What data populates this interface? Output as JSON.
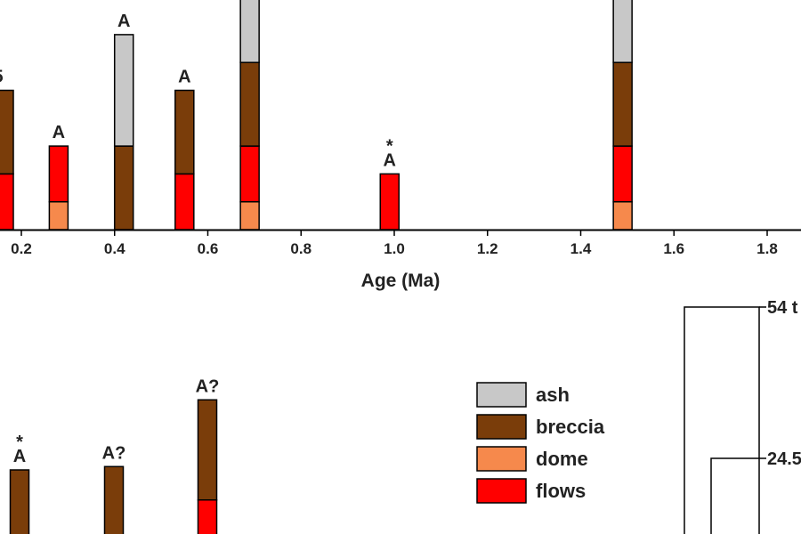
{
  "chart_data": [
    {
      "type": "bar",
      "stacked": true,
      "xlabel": "Age (Ma)",
      "x_ticks": [
        "0.2",
        "0.4",
        "0.6",
        "0.8",
        "1.0",
        "1.2",
        "1.4",
        "1.6",
        "1.8"
      ],
      "xlim": [
        0.15,
        1.85
      ],
      "series_order": [
        "dome",
        "flows",
        "breccia",
        "ash"
      ],
      "bars": [
        {
          "x": 0.14,
          "dome": 0,
          "flows": 2,
          "breccia": 3,
          "ash": 0,
          "label": "5",
          "truncated_left": true
        },
        {
          "x": 0.28,
          "dome": 1,
          "flows": 2,
          "breccia": 0,
          "ash": 0,
          "label": "A"
        },
        {
          "x": 0.42,
          "dome": 0,
          "flows": 0,
          "breccia": 3,
          "ash": 4,
          "label": "A"
        },
        {
          "x": 0.55,
          "dome": 0,
          "flows": 2,
          "breccia": 3,
          "ash": 0,
          "label": "A"
        },
        {
          "x": 0.69,
          "dome": 1,
          "flows": 2,
          "breccia": 3,
          "ash": 3,
          "label": "",
          "truncated_top": true
        },
        {
          "x": 0.99,
          "dome": 0,
          "flows": 2,
          "breccia": 0,
          "ash": 0,
          "label": "A",
          "marker": "*"
        },
        {
          "x": 1.49,
          "dome": 1,
          "flows": 2,
          "breccia": 3,
          "ash": 3,
          "label": "",
          "truncated_top": true
        }
      ]
    },
    {
      "type": "bar",
      "stacked": true,
      "partial": true,
      "series_order": [
        "dome",
        "flows",
        "breccia",
        "ash"
      ],
      "bars": [
        {
          "slot": 0,
          "dome": 0,
          "flows": 0,
          "breccia": 2.4,
          "ash": 0,
          "label": "A",
          "marker": "*"
        },
        {
          "slot": 1,
          "dome": 0,
          "flows": 0,
          "breccia": 2.5,
          "ash": 0,
          "label": "A?"
        },
        {
          "slot": 2,
          "dome": 0,
          "flows": 1.5,
          "breccia": 3,
          "ash": 0,
          "label": "A?"
        }
      ]
    }
  ],
  "legend": [
    {
      "key": "ash",
      "label": "ash",
      "color": "#c8c8c8"
    },
    {
      "key": "breccia",
      "label": "breccia",
      "color": "#7a3d0a"
    },
    {
      "key": "dome",
      "label": "dome",
      "color": "#f6894c"
    },
    {
      "key": "flows",
      "label": "flows",
      "color": "#ff0000"
    }
  ],
  "scale": {
    "labels": [
      "54 t",
      "24.5"
    ]
  }
}
